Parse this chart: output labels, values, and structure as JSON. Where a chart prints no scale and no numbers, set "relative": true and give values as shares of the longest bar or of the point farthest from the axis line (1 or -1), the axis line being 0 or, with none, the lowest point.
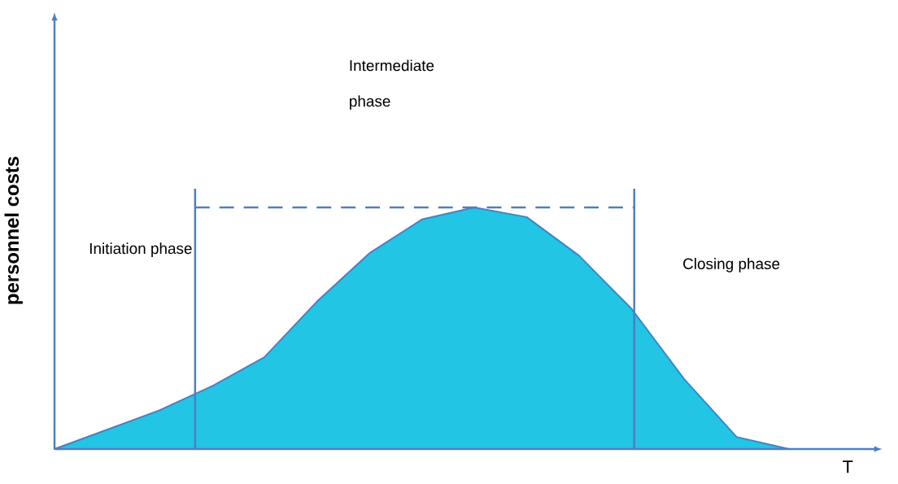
{
  "chart_data": {
    "type": "area",
    "relative": true,
    "xlabel": "T",
    "ylabel": "personnel costs",
    "categories": [
      null,
      null,
      null,
      null,
      null,
      null,
      null,
      null,
      null,
      null,
      null,
      null,
      null,
      null,
      null
    ],
    "series": [
      {
        "color": "#22c5e3",
        "values": [
          0,
          0.08,
          0.16,
          0.26,
          0.38,
          0.61,
          0.81,
          0.95,
          1.0,
          0.96,
          0.8,
          0.58,
          0.29,
          0.05,
          0
        ]
      }
    ],
    "ref_lines": [
      {
        "axis": "y",
        "value": 1.0,
        "color": "#4f7fbf",
        "line_style": "dashed"
      }
    ],
    "annotations": [
      "Initiation phase",
      "Intermediate phase",
      "Closing phase"
    ],
    "marker": "none"
  }
}
